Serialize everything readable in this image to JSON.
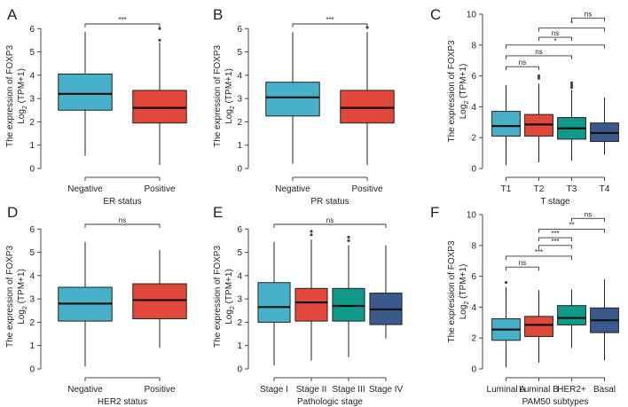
{
  "figure": {
    "y_axis_line1": "The expression of FOXP3",
    "y_axis_line2_main": "Log",
    "y_axis_line2_sub": "2",
    "y_axis_line2_rest": " (TPM+1)"
  },
  "chart_data": [
    {
      "type": "boxplot",
      "panel": "A",
      "xlabel": "ER status",
      "ylim": [
        0,
        6.2
      ],
      "yticks": [
        0,
        1,
        2,
        3,
        4,
        5,
        6
      ],
      "categories": [
        "Negative",
        "Positive"
      ],
      "colors": [
        "#46b1c9",
        "#e0493a"
      ],
      "boxes": [
        {
          "min": 0.55,
          "q1": 2.5,
          "median": 3.2,
          "q3": 4.05,
          "max": 5.85,
          "outliers": []
        },
        {
          "min": 0.15,
          "q1": 1.95,
          "median": 2.6,
          "q3": 3.35,
          "max": 5.4,
          "outliers": [
            5.5,
            6.0
          ]
        }
      ],
      "comparisons": [
        {
          "from": 0,
          "to": 1,
          "label": "***",
          "y": 6.2
        }
      ]
    },
    {
      "type": "boxplot",
      "panel": "B",
      "xlabel": "PR status",
      "ylim": [
        0,
        6.2
      ],
      "yticks": [
        0,
        1,
        2,
        3,
        4,
        5,
        6
      ],
      "categories": [
        "Negative",
        "Positive"
      ],
      "colors": [
        "#46b1c9",
        "#e0493a"
      ],
      "boxes": [
        {
          "min": 0.2,
          "q1": 2.25,
          "median": 3.05,
          "q3": 3.7,
          "max": 5.85,
          "outliers": []
        },
        {
          "min": 0.15,
          "q1": 1.95,
          "median": 2.6,
          "q3": 3.35,
          "max": 5.85,
          "outliers": [
            6.05
          ]
        }
      ],
      "comparisons": [
        {
          "from": 0,
          "to": 1,
          "label": "***",
          "y": 6.2
        }
      ]
    },
    {
      "type": "boxplot",
      "panel": "C",
      "xlabel": "T stage",
      "ylim": [
        0,
        10
      ],
      "yticks": [
        0,
        2,
        4,
        6,
        8,
        10
      ],
      "categories": [
        "T1",
        "T2",
        "T3",
        "T4"
      ],
      "colors": [
        "#46b1c9",
        "#e0493a",
        "#11998a",
        "#3b5a8c"
      ],
      "boxes": [
        {
          "min": 0.2,
          "q1": 2.1,
          "median": 2.75,
          "q3": 3.7,
          "max": 5.4,
          "outliers": []
        },
        {
          "min": 0.4,
          "q1": 2.1,
          "median": 2.85,
          "q3": 3.5,
          "max": 5.5,
          "outliers": [
            5.85,
            6.0
          ]
        },
        {
          "min": 0.5,
          "q1": 1.9,
          "median": 2.6,
          "q3": 3.3,
          "max": 5.1,
          "outliers": [
            5.25,
            5.4,
            5.55
          ]
        },
        {
          "min": 0.9,
          "q1": 1.75,
          "median": 2.3,
          "q3": 2.95,
          "max": 4.6,
          "outliers": []
        }
      ],
      "comparisons": [
        {
          "from": 0,
          "to": 1,
          "label": "ns",
          "y": 6.6
        },
        {
          "from": 0,
          "to": 2,
          "label": "ns",
          "y": 7.3
        },
        {
          "from": 0,
          "to": 3,
          "label": "*",
          "y": 8.0
        },
        {
          "from": 1,
          "to": 2,
          "label": "ns",
          "y": 8.5
        },
        {
          "from": 1,
          "to": 3,
          "label": "*",
          "y": 9.1
        },
        {
          "from": 2,
          "to": 3,
          "label": "ns",
          "y": 9.75
        }
      ]
    },
    {
      "type": "boxplot",
      "panel": "D",
      "xlabel": "HER2 status",
      "ylim": [
        0,
        6.2
      ],
      "yticks": [
        0,
        1,
        2,
        3,
        4,
        5,
        6
      ],
      "categories": [
        "Negative",
        "Positive"
      ],
      "colors": [
        "#46b1c9",
        "#e0493a"
      ],
      "boxes": [
        {
          "min": 0.1,
          "q1": 2.05,
          "median": 2.8,
          "q3": 3.5,
          "max": 5.45,
          "outliers": []
        },
        {
          "min": 0.9,
          "q1": 2.15,
          "median": 2.95,
          "q3": 3.65,
          "max": 5.1,
          "outliers": []
        }
      ],
      "comparisons": [
        {
          "from": 0,
          "to": 1,
          "label": "ns",
          "y": 6.2
        }
      ]
    },
    {
      "type": "boxplot",
      "panel": "E",
      "xlabel": "Pathologic stage",
      "ylim": [
        0,
        6.2
      ],
      "yticks": [
        0,
        1,
        2,
        3,
        4,
        5,
        6
      ],
      "categories": [
        "Stage I",
        "Stage II",
        "Stage III",
        "Stage IV"
      ],
      "colors": [
        "#46b1c9",
        "#e0493a",
        "#11998a",
        "#3b5a8c"
      ],
      "boxes": [
        {
          "min": 0.15,
          "q1": 2.0,
          "median": 2.65,
          "q3": 3.7,
          "max": 5.45,
          "outliers": []
        },
        {
          "min": 0.35,
          "q1": 2.05,
          "median": 2.85,
          "q3": 3.45,
          "max": 5.55,
          "outliers": [
            5.75,
            5.9
          ]
        },
        {
          "min": 0.5,
          "q1": 2.05,
          "median": 2.7,
          "q3": 3.45,
          "max": 5.3,
          "outliers": [
            5.5,
            5.65
          ]
        },
        {
          "min": 1.3,
          "q1": 1.9,
          "median": 2.55,
          "q3": 3.25,
          "max": 5.3,
          "outliers": []
        }
      ],
      "comparisons": [
        {
          "from": 0,
          "to": 3,
          "label": "ns",
          "y": 6.2
        }
      ]
    },
    {
      "type": "boxplot",
      "panel": "F",
      "xlabel": "PAM50 subtypes",
      "ylim": [
        0,
        10
      ],
      "yticks": [
        0,
        2,
        4,
        6,
        8,
        10
      ],
      "categories": [
        "Luminal A",
        "Luminal B",
        "HER2+",
        "Basal"
      ],
      "colors": [
        "#46b1c9",
        "#e0493a",
        "#11998a",
        "#3b5a8c"
      ],
      "boxes": [
        {
          "min": 0.1,
          "q1": 1.85,
          "median": 2.55,
          "q3": 3.25,
          "max": 5.3,
          "outliers": [
            5.6
          ]
        },
        {
          "min": 0.4,
          "q1": 2.1,
          "median": 2.85,
          "q3": 3.4,
          "max": 5.1,
          "outliers": []
        },
        {
          "min": 1.35,
          "q1": 2.85,
          "median": 3.3,
          "q3": 4.1,
          "max": 5.15,
          "outliers": []
        },
        {
          "min": 0.55,
          "q1": 2.35,
          "median": 3.15,
          "q3": 3.95,
          "max": 5.8,
          "outliers": []
        }
      ],
      "comparisons": [
        {
          "from": 0,
          "to": 1,
          "label": "ns",
          "y": 6.6
        },
        {
          "from": 0,
          "to": 2,
          "label": "***",
          "y": 7.3
        },
        {
          "from": 1,
          "to": 2,
          "label": "***",
          "y": 8.0
        },
        {
          "from": 1,
          "to": 2,
          "label": "***",
          "y": 8.5
        },
        {
          "from": 1,
          "to": 3,
          "label": "**",
          "y": 9.05
        },
        {
          "from": 2,
          "to": 3,
          "label": "ns",
          "y": 9.75
        }
      ]
    }
  ]
}
